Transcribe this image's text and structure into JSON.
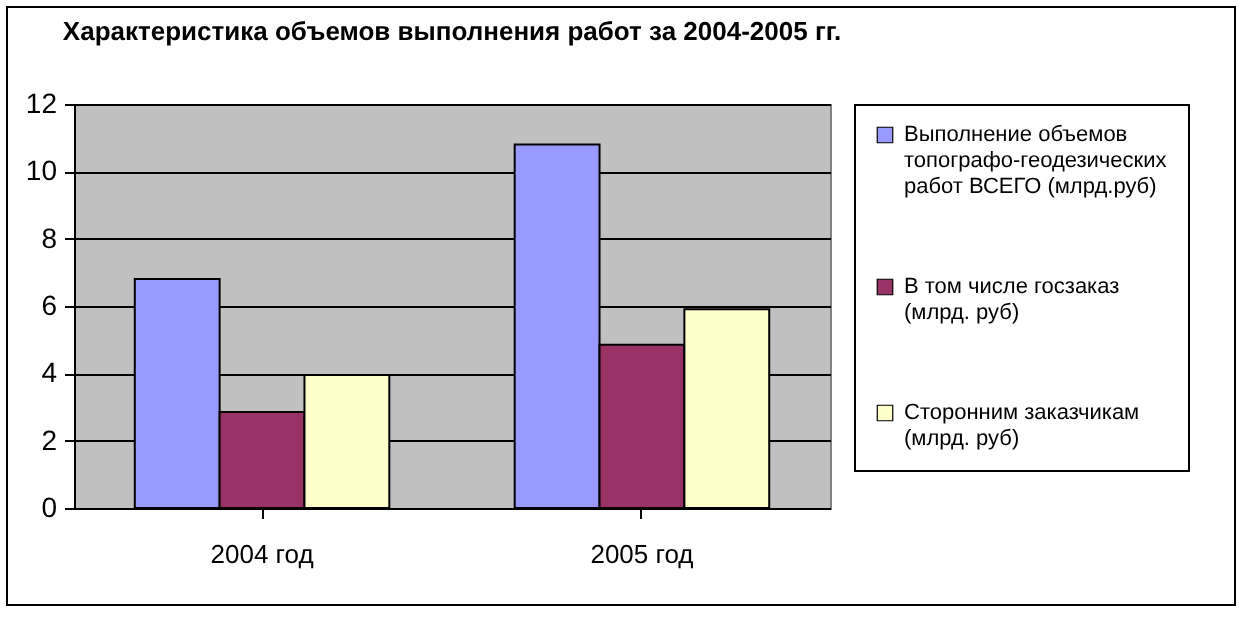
{
  "chart_data": {
    "type": "bar",
    "title": "Характеристика объемов выполнения работ за 2004-2005 гг.",
    "categories": [
      "2004 год",
      "2005 год"
    ],
    "series": [
      {
        "name": "Выполнение  объемов топографо-геодезических работ ВСЕГО (млрд.руб)",
        "color": "#9999ff",
        "values": [
          6.8,
          10.8
        ]
      },
      {
        "name": "В том числе госзаказ (млрд. руб)",
        "color": "#993366",
        "values": [
          2.85,
          4.85
        ]
      },
      {
        "name": "Сторонним  заказчикам (млрд. руб)",
        "color": "#ffffcc",
        "values": [
          3.95,
          5.9
        ]
      }
    ],
    "ylim": [
      0,
      12
    ],
    "yticks": [
      0,
      2,
      4,
      6,
      8,
      10,
      12
    ],
    "grid": "y",
    "legend": "right"
  }
}
